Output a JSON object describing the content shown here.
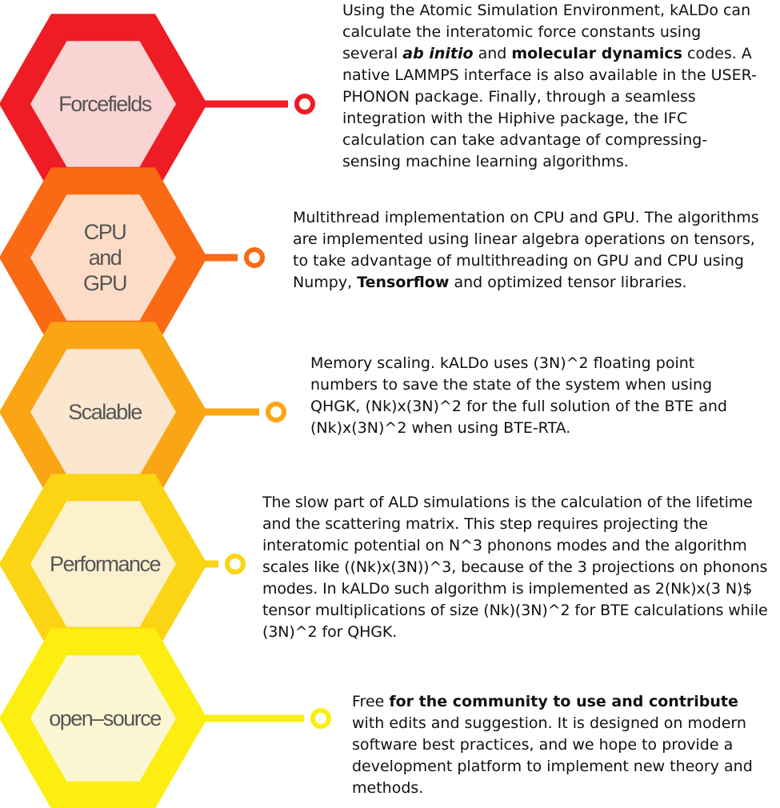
{
  "items": [
    {
      "label_lines": [
        "Forcefields"
      ],
      "outer_color": "#ee1c24",
      "inner_color": "#fad3d3",
      "description": [
        {
          "t": "Using the Atomic Simulation Environment, kALDo can calculate the interatomic force constants using several "
        },
        {
          "t": "ab initio",
          "s": "bi"
        },
        {
          "t": " and "
        },
        {
          "t": "molecular dynamics",
          "s": "b"
        },
        {
          "t": " codes. A native LAMMPS interface is also available in the USER-PHONON package. Finally, through a seamless integration with the Hiphive package, the IFC calculation can take advantage of compressing-sensing machine learning algorithms."
        }
      ]
    },
    {
      "label_lines": [
        "CPU",
        "and",
        "GPU"
      ],
      "outer_color": "#fa6a14",
      "inner_color": "#fcdcc6",
      "description": [
        {
          "t": "Multithread implementation on CPU and GPU. The algorithms are implemented using linear algebra operations on tensors, to take advantage of multithreading on GPU and CPU using Numpy, "
        },
        {
          "t": "Tensorflow",
          "s": "b"
        },
        {
          "t": " and optimized tensor libraries."
        }
      ]
    },
    {
      "label_lines": [
        "Scalable"
      ],
      "outer_color": "#f9a514",
      "inner_color": "#fbe7cf",
      "description": [
        {
          "t": "Memory scaling. kALDo uses (3N)^2 floating point numbers to save the state of the system when using QHGK, (Nk)x(3N)^2 for the full solution of the BTE and (Nk)x(3N)^2 when using BTE-RTA."
        }
      ]
    },
    {
      "label_lines": [
        "Performance"
      ],
      "outer_color": "#fbd413",
      "inner_color": "#fcf0cd",
      "description": [
        {
          "t": "The slow part of ALD simulations is the calculation of the lifetime and the scattering matrix. This step requires projecting the interatomic potential on N^3 phonons modes and the algorithm scales like ((Nk)x(3N))^3, because of the 3 projections on phonons modes. In kALDo such algorithm is implemented as 2(Nk)x(3 N)$ tensor multiplications of size (Nk)(3N)^2 for BTE calculations while (3N)^2 for QHGK."
        }
      ]
    },
    {
      "label_lines": [
        "open–source"
      ],
      "outer_color": "#fcee10",
      "inner_color": "#fcf7d2",
      "description": [
        {
          "t": "Free "
        },
        {
          "t": "for the community to use and contribute",
          "s": "b"
        },
        {
          "t": " with edits and suggestion. It is designed on modern software best practices, and we hope to provide a development platform to implement new theory and methods."
        }
      ]
    }
  ]
}
